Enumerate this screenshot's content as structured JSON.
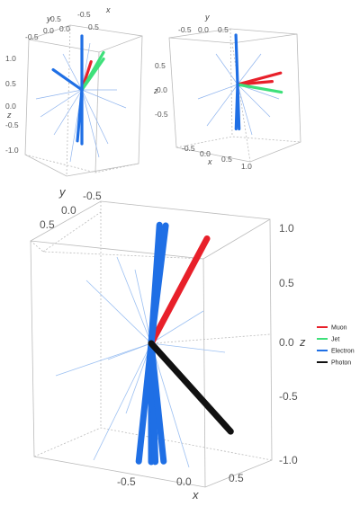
{
  "chart_data": [
    {
      "type": "3d-line",
      "panel": "top-left",
      "axes": {
        "x": {
          "label": "x",
          "ticks": [
            "-0.5",
            "0.0",
            "0.5"
          ]
        },
        "y": {
          "label": "y",
          "ticks": [
            "-0.5",
            "0.0",
            "0.5"
          ]
        },
        "z": {
          "label": "z",
          "ticks": [
            "1.0",
            "0.5",
            "0.0",
            "-0.5",
            "-1.0"
          ],
          "range": [
            -1,
            1
          ]
        }
      },
      "series": [
        {
          "name": "Muon",
          "color": "#e8202a",
          "tracks": [
            {
              "angle": -72,
              "length": 0.55
            }
          ]
        },
        {
          "name": "Jet",
          "color": "#3ee07a",
          "tracks": [
            {
              "angle": -55,
              "length": 0.7
            },
            {
              "angle": -60,
              "length": 0.8
            }
          ]
        },
        {
          "name": "Electron",
          "color": "#1f6fe5",
          "tracks": [
            {
              "angle": -90,
              "length": 1.0
            },
            {
              "angle": 90,
              "length": 1.0
            },
            {
              "angle": 95,
              "length": 0.95
            },
            {
              "angle": -145,
              "length": 0.65
            }
          ]
        }
      ]
    },
    {
      "type": "3d-line",
      "panel": "top-right",
      "axes": {
        "x": {
          "label": "x",
          "ticks": [
            "-0.5",
            "0.0",
            "0.5",
            "1.0"
          ]
        },
        "y": {
          "label": "y",
          "ticks": [
            "-0.5",
            "0.0",
            "0.5"
          ]
        },
        "z": {
          "label": "z",
          "ticks": [
            "0.5",
            "0.0",
            "-0.5"
          ]
        }
      },
      "series": [
        {
          "name": "Muon",
          "color": "#e8202a",
          "tracks": [
            {
              "angle": -15,
              "length": 0.9
            },
            {
              "angle": -5,
              "length": 0.7
            }
          ]
        },
        {
          "name": "Jet",
          "color": "#3ee07a",
          "tracks": [
            {
              "angle": 10,
              "length": 0.9
            }
          ]
        },
        {
          "name": "Electron",
          "color": "#1f6fe5",
          "tracks": [
            {
              "angle": -92,
              "length": 1.0
            },
            {
              "angle": 88,
              "length": 0.9
            },
            {
              "angle": 92,
              "length": 0.9
            }
          ]
        }
      ]
    },
    {
      "type": "3d-line",
      "panel": "bottom",
      "axes": {
        "x": {
          "label": "x",
          "ticks": [
            "-0.5",
            "0.0",
            "0.5"
          ]
        },
        "y": {
          "label": "y",
          "ticks": [
            "-0.5",
            "0.0",
            "0.5"
          ]
        },
        "z": {
          "label": "z",
          "ticks": [
            "1.0",
            "0.5",
            "0.0",
            "-0.5",
            "-1.0"
          ],
          "range": [
            -1,
            1
          ]
        }
      },
      "series": [
        {
          "name": "Muon",
          "color": "#e8202a",
          "tracks": [
            {
              "angle": -62,
              "length": 1.0
            }
          ]
        },
        {
          "name": "Electron",
          "color": "#1f6fe5",
          "tracks": [
            {
              "angle": -86,
              "length": 1.0
            },
            {
              "angle": -83,
              "length": 1.0
            },
            {
              "angle": 96,
              "length": 1.0
            },
            {
              "angle": 90,
              "length": 1.0
            },
            {
              "angle": 88,
              "length": 1.0
            },
            {
              "angle": 84,
              "length": 1.0
            }
          ]
        },
        {
          "name": "Photon",
          "color": "#111111",
          "tracks": [
            {
              "angle": 48,
              "length": 1.0
            }
          ]
        }
      ]
    }
  ],
  "legend": {
    "position": "right",
    "entries": [
      {
        "name": "Muon",
        "color": "#e8202a"
      },
      {
        "name": "Jet",
        "color": "#3ee07a"
      },
      {
        "name": "Electron",
        "color": "#1f6fe5"
      },
      {
        "name": "Photon",
        "color": "#111111"
      }
    ]
  }
}
